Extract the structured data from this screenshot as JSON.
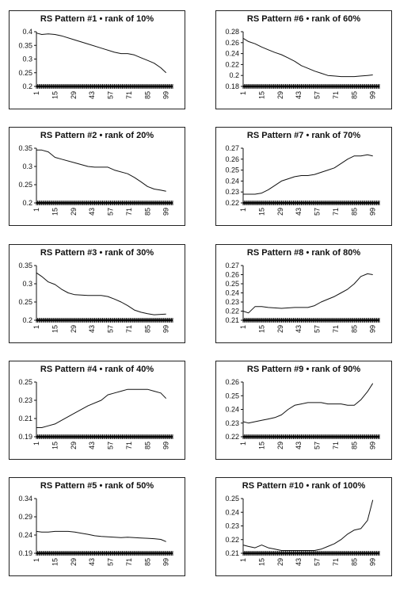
{
  "chart_data": [
    {
      "type": "line",
      "title": "RS Pattern #1 • rank of 10%",
      "x_tick_labels": [
        "1",
        "15",
        "29",
        "43",
        "57",
        "71",
        "85",
        "99"
      ],
      "ylim": [
        0.2,
        0.4
      ],
      "y_ticks": [
        0.2,
        0.25,
        0.3,
        0.35,
        0.4
      ],
      "y_tick_labels": [
        "0.2",
        "0.25",
        "0.3",
        "0.35",
        "0.4"
      ],
      "series": [
        {
          "x": [
            1,
            5,
            10,
            15,
            20,
            30,
            40,
            50,
            60,
            65,
            70,
            75,
            80,
            85,
            90,
            95,
            99
          ],
          "y": [
            0.395,
            0.39,
            0.392,
            0.39,
            0.385,
            0.37,
            0.355,
            0.34,
            0.325,
            0.32,
            0.32,
            0.315,
            0.305,
            0.295,
            0.285,
            0.268,
            0.25
          ]
        }
      ]
    },
    {
      "type": "line",
      "title": "RS Pattern #2 • rank of 20%",
      "x_tick_labels": [
        "1",
        "15",
        "29",
        "43",
        "57",
        "71",
        "85",
        "99"
      ],
      "ylim": [
        0.2,
        0.35
      ],
      "y_ticks": [
        0.2,
        0.25,
        0.3,
        0.35
      ],
      "y_tick_labels": [
        "0.2",
        "0.25",
        "0.3",
        "0.35"
      ],
      "series": [
        {
          "x": [
            1,
            5,
            10,
            15,
            20,
            30,
            40,
            45,
            55,
            60,
            70,
            75,
            80,
            85,
            90,
            95,
            99
          ],
          "y": [
            0.345,
            0.345,
            0.34,
            0.325,
            0.32,
            0.31,
            0.3,
            0.298,
            0.298,
            0.29,
            0.28,
            0.27,
            0.258,
            0.245,
            0.238,
            0.235,
            0.232
          ]
        }
      ]
    },
    {
      "type": "line",
      "title": "RS Pattern #3 • rank of 30%",
      "x_tick_labels": [
        "1",
        "15",
        "29",
        "43",
        "57",
        "71",
        "85",
        "99"
      ],
      "ylim": [
        0.2,
        0.35
      ],
      "y_ticks": [
        0.2,
        0.25,
        0.3,
        0.35
      ],
      "y_tick_labels": [
        "0.2",
        "0.25",
        "0.3",
        "0.35"
      ],
      "series": [
        {
          "x": [
            1,
            5,
            10,
            15,
            20,
            25,
            30,
            40,
            50,
            55,
            60,
            65,
            70,
            75,
            80,
            85,
            90,
            95,
            99
          ],
          "y": [
            0.33,
            0.32,
            0.305,
            0.298,
            0.285,
            0.275,
            0.27,
            0.268,
            0.268,
            0.265,
            0.258,
            0.25,
            0.24,
            0.228,
            0.222,
            0.218,
            0.215,
            0.216,
            0.217
          ]
        }
      ]
    },
    {
      "type": "line",
      "title": "RS Pattern #4 • rank of 40%",
      "x_tick_labels": [
        "1",
        "15",
        "29",
        "43",
        "57",
        "71",
        "85",
        "99"
      ],
      "ylim": [
        0.19,
        0.25
      ],
      "y_ticks": [
        0.19,
        0.21,
        0.23,
        0.25
      ],
      "y_tick_labels": [
        "0.19",
        "0.21",
        "0.23",
        "0.25"
      ],
      "series": [
        {
          "x": [
            1,
            5,
            10,
            15,
            20,
            30,
            40,
            50,
            55,
            60,
            65,
            70,
            75,
            80,
            85,
            90,
            95,
            99
          ],
          "y": [
            0.2,
            0.2,
            0.202,
            0.204,
            0.208,
            0.216,
            0.224,
            0.23,
            0.236,
            0.238,
            0.24,
            0.242,
            0.242,
            0.242,
            0.242,
            0.24,
            0.238,
            0.232
          ]
        }
      ]
    },
    {
      "type": "line",
      "title": "RS Pattern #5 • rank of 50%",
      "x_tick_labels": [
        "1",
        "15",
        "29",
        "43",
        "57",
        "71",
        "85",
        "99"
      ],
      "ylim": [
        0.19,
        0.34
      ],
      "y_ticks": [
        0.19,
        0.24,
        0.29,
        0.34
      ],
      "y_tick_labels": [
        "0.19",
        "0.24",
        "0.29",
        "0.34"
      ],
      "series": [
        {
          "x": [
            1,
            5,
            10,
            15,
            20,
            25,
            30,
            35,
            40,
            45,
            50,
            55,
            60,
            65,
            70,
            75,
            80,
            85,
            90,
            95,
            99
          ],
          "y": [
            0.25,
            0.248,
            0.248,
            0.25,
            0.25,
            0.25,
            0.248,
            0.245,
            0.242,
            0.238,
            0.236,
            0.235,
            0.234,
            0.233,
            0.234,
            0.233,
            0.232,
            0.231,
            0.23,
            0.228,
            0.222
          ]
        }
      ]
    },
    {
      "type": "line",
      "title": "RS Pattern #6 • rank of 60%",
      "x_tick_labels": [
        "1",
        "15",
        "29",
        "43",
        "57",
        "71",
        "85",
        "99"
      ],
      "ylim": [
        0.18,
        0.28
      ],
      "y_ticks": [
        0.18,
        0.2,
        0.22,
        0.24,
        0.26,
        0.28
      ],
      "y_tick_labels": [
        "0.18",
        "0.2",
        "0.22",
        "0.24",
        "0.26",
        "0.28"
      ],
      "series": [
        {
          "x": [
            1,
            5,
            10,
            15,
            20,
            25,
            30,
            35,
            40,
            45,
            50,
            55,
            60,
            65,
            70,
            75,
            80,
            85,
            90,
            95,
            99
          ],
          "y": [
            0.268,
            0.262,
            0.258,
            0.252,
            0.247,
            0.242,
            0.238,
            0.232,
            0.226,
            0.218,
            0.213,
            0.208,
            0.204,
            0.2,
            0.199,
            0.198,
            0.198,
            0.198,
            0.199,
            0.2,
            0.201
          ]
        }
      ]
    },
    {
      "type": "line",
      "title": "RS Pattern #7 • rank of 70%",
      "x_tick_labels": [
        "1",
        "15",
        "29",
        "43",
        "57",
        "71",
        "85",
        "99"
      ],
      "ylim": [
        0.22,
        0.27
      ],
      "y_ticks": [
        0.22,
        0.23,
        0.24,
        0.25,
        0.26,
        0.27
      ],
      "y_tick_labels": [
        "0.22",
        "0.23",
        "0.24",
        "0.25",
        "0.26",
        "0.27"
      ],
      "series": [
        {
          "x": [
            1,
            5,
            10,
            15,
            20,
            25,
            30,
            35,
            40,
            45,
            50,
            55,
            60,
            65,
            70,
            75,
            80,
            85,
            90,
            95,
            99
          ],
          "y": [
            0.228,
            0.228,
            0.228,
            0.229,
            0.232,
            0.236,
            0.24,
            0.242,
            0.244,
            0.245,
            0.245,
            0.246,
            0.248,
            0.25,
            0.252,
            0.256,
            0.26,
            0.263,
            0.263,
            0.264,
            0.263
          ]
        }
      ]
    },
    {
      "type": "line",
      "title": "RS Pattern #8 • rank of 80%",
      "x_tick_labels": [
        "1",
        "15",
        "29",
        "43",
        "57",
        "71",
        "85",
        "99"
      ],
      "ylim": [
        0.21,
        0.27
      ],
      "y_ticks": [
        0.21,
        0.22,
        0.23,
        0.24,
        0.25,
        0.26,
        0.27
      ],
      "y_tick_labels": [
        "0.21",
        "0.22",
        "0.23",
        "0.24",
        "0.25",
        "0.26",
        "0.27"
      ],
      "series": [
        {
          "x": [
            1,
            5,
            10,
            15,
            20,
            30,
            40,
            50,
            55,
            60,
            65,
            70,
            75,
            80,
            85,
            90,
            95,
            99
          ],
          "y": [
            0.22,
            0.218,
            0.225,
            0.225,
            0.224,
            0.223,
            0.224,
            0.224,
            0.226,
            0.23,
            0.233,
            0.236,
            0.24,
            0.244,
            0.25,
            0.258,
            0.261,
            0.26
          ]
        }
      ]
    },
    {
      "type": "line",
      "title": "RS Pattern #9 • rank of 90%",
      "x_tick_labels": [
        "1",
        "15",
        "29",
        "43",
        "57",
        "71",
        "85",
        "99"
      ],
      "ylim": [
        0.22,
        0.26
      ],
      "y_ticks": [
        0.22,
        0.23,
        0.24,
        0.25,
        0.26
      ],
      "y_tick_labels": [
        "0.22",
        "0.23",
        "0.24",
        "0.25",
        "0.26"
      ],
      "series": [
        {
          "x": [
            1,
            5,
            10,
            15,
            20,
            25,
            30,
            35,
            40,
            45,
            50,
            55,
            60,
            65,
            70,
            75,
            80,
            85,
            90,
            95,
            99
          ],
          "y": [
            0.231,
            0.23,
            0.231,
            0.232,
            0.233,
            0.234,
            0.236,
            0.24,
            0.243,
            0.244,
            0.245,
            0.245,
            0.245,
            0.244,
            0.244,
            0.244,
            0.243,
            0.243,
            0.247,
            0.253,
            0.259
          ]
        }
      ]
    },
    {
      "type": "line",
      "title": "RS Pattern #10 • rank of 100%",
      "x_tick_labels": [
        "1",
        "15",
        "29",
        "43",
        "57",
        "71",
        "85",
        "99"
      ],
      "ylim": [
        0.21,
        0.25
      ],
      "y_ticks": [
        0.21,
        0.22,
        0.23,
        0.24,
        0.25
      ],
      "y_tick_labels": [
        "0.21",
        "0.22",
        "0.23",
        "0.24",
        "0.25"
      ],
      "series": [
        {
          "x": [
            1,
            5,
            10,
            15,
            20,
            25,
            30,
            35,
            40,
            45,
            50,
            55,
            60,
            65,
            70,
            75,
            80,
            85,
            90,
            95,
            99
          ],
          "y": [
            0.216,
            0.215,
            0.214,
            0.216,
            0.214,
            0.213,
            0.212,
            0.212,
            0.212,
            0.212,
            0.212,
            0.212,
            0.213,
            0.215,
            0.217,
            0.22,
            0.224,
            0.227,
            0.228,
            0.234,
            0.249
          ]
        }
      ]
    }
  ]
}
